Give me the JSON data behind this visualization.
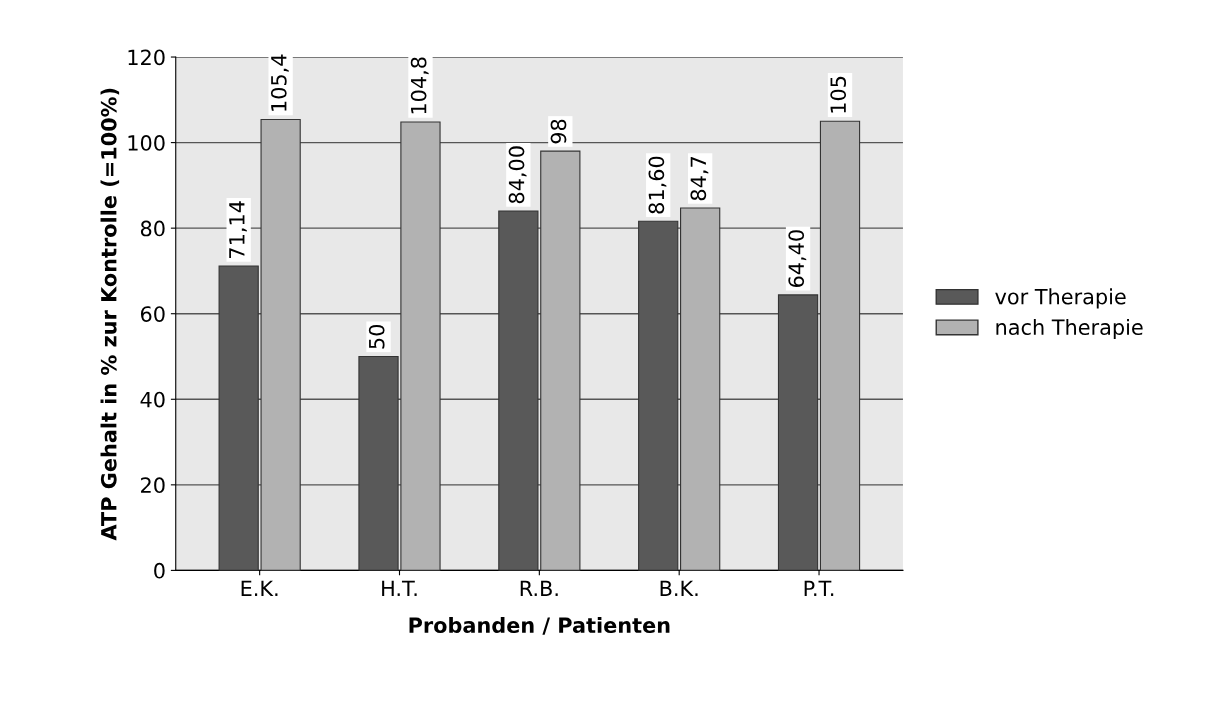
{
  "chart_data": {
    "type": "bar",
    "xlabel": "Probanden / Patienten",
    "ylabel": "ATP Gehalt in % zur Kontrolle (=100%)",
    "categories": [
      "E.K.",
      "H.T.",
      "R.B.",
      "B.K.",
      "P.T."
    ],
    "series": [
      {
        "name": "vor Therapie",
        "color": "#595959",
        "values": [
          71.14,
          50,
          84.0,
          81.6,
          64.4
        ],
        "value_labels": [
          "71,14",
          "50",
          "84,00",
          "81,60",
          "64,40"
        ]
      },
      {
        "name": "nach Therapie",
        "color": "#b2b2b2",
        "values": [
          105.4,
          104.8,
          98,
          84.7,
          105
        ],
        "value_labels": [
          "105,4",
          "104,8",
          "98",
          "84,7",
          "105"
        ]
      }
    ],
    "ylim": [
      0,
      120
    ],
    "yticks": [
      0,
      20,
      40,
      60,
      80,
      100,
      120
    ],
    "grid": "y",
    "legend": "right"
  }
}
